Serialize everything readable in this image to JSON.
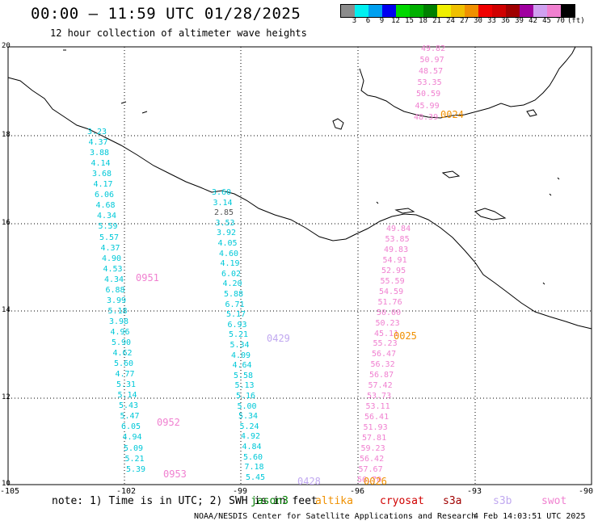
{
  "header": {
    "title": "00:00 – 11:59 UTC 01/28/2025",
    "subtitle": "12 hour collection of altimeter wave heights"
  },
  "colorbar": {
    "ticks": [
      "3",
      "6",
      "9",
      "12",
      "15",
      "18",
      "21",
      "24",
      "27",
      "30",
      "33",
      "36",
      "39",
      "42",
      "45",
      "70",
      "(ft)"
    ],
    "colors": [
      "#8c8c8c",
      "#00f0f0",
      "#00a0f0",
      "#0000f0",
      "#00d800",
      "#00b000",
      "#008000",
      "#f0f000",
      "#f0c000",
      "#f09000",
      "#f00000",
      "#d00000",
      "#a00000",
      "#a000a0",
      "#d0a0f0",
      "#f080d0",
      "#000000"
    ]
  },
  "axes": {
    "lat_ticks": [
      "20",
      "18",
      "16",
      "14",
      "12",
      "10"
    ],
    "lon_ticks": [
      "-105",
      "-102",
      "-99",
      "-96",
      "-93",
      "-90"
    ]
  },
  "tracks": [
    {
      "name": "cyan-west",
      "color": "#00c8d8",
      "id_label": "0951",
      "id_color": "#ff70d0",
      "values": [
        "3.23",
        "4.37",
        "3.88",
        "4.14",
        "3.68",
        "4.17",
        "6.06",
        "4.68",
        "4.34",
        "5.59",
        "5.57",
        "4.37",
        "4.90",
        "4.53",
        "4.34",
        "6.88",
        "3.99",
        "5.18",
        "3.98",
        "4.96",
        "5.90",
        "4.62",
        "5.60",
        "4.77",
        "5.31",
        "5.14",
        "5.43",
        "5.47",
        "6.05",
        "4.94",
        "5.09",
        "5.21",
        "5.39"
      ]
    },
    {
      "name": "cyan-central",
      "color": "#00c8d8",
      "values": [
        "3.60",
        "3.14",
        "2.85",
        "3.53",
        "3.92",
        "4.05",
        "4.60",
        "4.19",
        "6.02",
        "4.20",
        "5.88",
        "6.71",
        "5.17",
        "6.93",
        "5.21",
        "5.34",
        "4.09",
        "4.64",
        "5.58",
        "5.13",
        "5.16",
        "5.00",
        "5.34",
        "5.24",
        "4.92",
        "4.84",
        "5.60",
        "7.18",
        "5.45"
      ]
    },
    {
      "name": "pink-north",
      "color": "#f080d0",
      "values": [
        "49.82",
        "50.97",
        "48.57",
        "53.35",
        "50.59",
        "45.99",
        "48.39"
      ]
    },
    {
      "name": "pink-south",
      "color": "#f080d0",
      "values": [
        "49.84",
        "53.85",
        "49.83",
        "54.91",
        "52.95",
        "55.59",
        "54.59",
        "51.76",
        "50.00",
        "50.23",
        "45.11",
        "55.23",
        "56.47",
        "56.32",
        "56.87",
        "57.42",
        "53.73",
        "53.11",
        "56.41",
        "51.93",
        "57.81",
        "59.23",
        "56.42",
        "57.67",
        "56.70"
      ]
    }
  ],
  "id_labels": {
    "l0024": "0024",
    "l0025": "0025",
    "l0026": "0026",
    "l0428": "0428",
    "l0429": "0429",
    "l0951": "0951",
    "l0952": "0952",
    "l0953": "0953"
  },
  "footer": {
    "note": "note: 1) Time is in UTC; 2) SWH is in feet",
    "legend": [
      {
        "name": "jason3",
        "color": "#008000"
      },
      {
        "name": "altika",
        "color": "#f09000"
      },
      {
        "name": "cryosat",
        "color": "#d00000"
      },
      {
        "name": "s3a",
        "color": "#a00000"
      },
      {
        "name": "s3b",
        "color": "#c0a8f0"
      },
      {
        "name": "swot",
        "color": "#f080d0"
      }
    ],
    "credit": "NOAA/NESDIS Center for Satellite Applications and Research",
    "timestamp": "4 Feb 14:03:51 UTC 2025"
  }
}
